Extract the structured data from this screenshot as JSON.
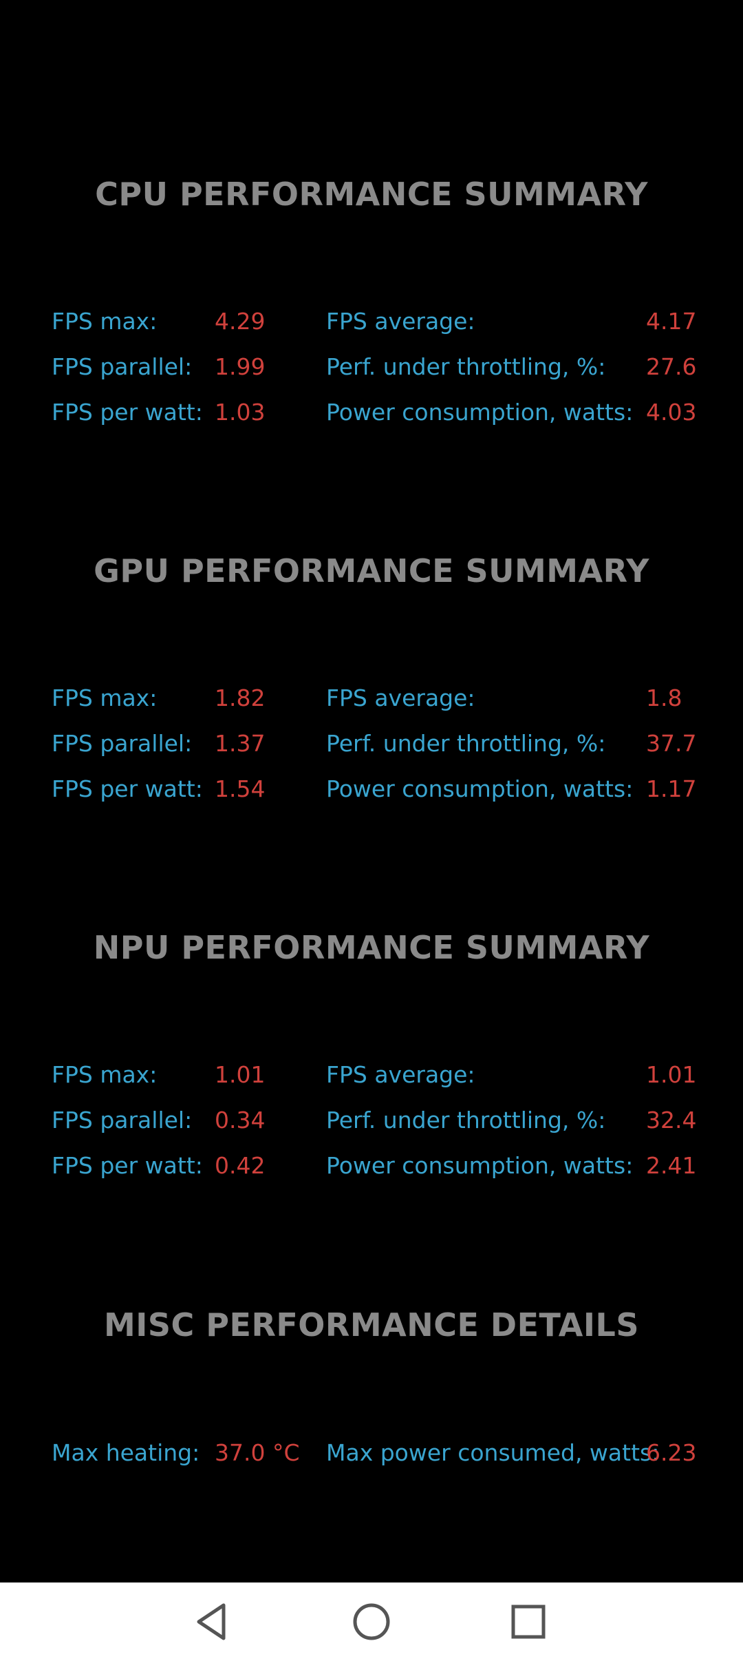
{
  "sections": [
    {
      "title": "CPU PERFORMANCE SUMMARY",
      "fps_max_label": "FPS max:",
      "fps_max": "4.29",
      "fps_avg_label": "FPS average:",
      "fps_avg": "4.17",
      "fps_parallel_label": "FPS parallel:",
      "fps_parallel": "1.99",
      "throttling_label": "Perf. under throttling, %:",
      "throttling": "27.6",
      "fps_per_watt_label": "FPS per watt:",
      "fps_per_watt": "1.03",
      "power_label": "Power consumption, watts:",
      "power": "4.03"
    },
    {
      "title": "GPU PERFORMANCE SUMMARY",
      "fps_max_label": "FPS max:",
      "fps_max": "1.82",
      "fps_avg_label": "FPS average:",
      "fps_avg": "1.8",
      "fps_parallel_label": "FPS parallel:",
      "fps_parallel": "1.37",
      "throttling_label": "Perf. under throttling, %:",
      "throttling": "37.7",
      "fps_per_watt_label": "FPS per watt:",
      "fps_per_watt": "1.54",
      "power_label": "Power consumption, watts:",
      "power": "1.17"
    },
    {
      "title": "NPU PERFORMANCE SUMMARY",
      "fps_max_label": "FPS max:",
      "fps_max": "1.01",
      "fps_avg_label": "FPS average:",
      "fps_avg": "1.01",
      "fps_parallel_label": "FPS parallel:",
      "fps_parallel": "0.34",
      "throttling_label": "Perf. under throttling, %:",
      "throttling": "32.4",
      "fps_per_watt_label": "FPS per watt:",
      "fps_per_watt": "0.42",
      "power_label": "Power consumption, watts:",
      "power": "2.41"
    }
  ],
  "misc": {
    "title": "MISC PERFORMANCE DETAILS",
    "max_heating_label": "Max heating:",
    "max_heating": "37.0 °C",
    "max_power_label": "Max power consumed, watts:",
    "max_power": "6.23"
  },
  "colors": {
    "background": "#000000",
    "title": "#8a8a8a",
    "label": "#3aa5d0",
    "value": "#d0413c",
    "navbar": "#ffffff"
  },
  "navbar": {
    "icons": [
      "back-icon",
      "home-icon",
      "recents-icon"
    ]
  }
}
